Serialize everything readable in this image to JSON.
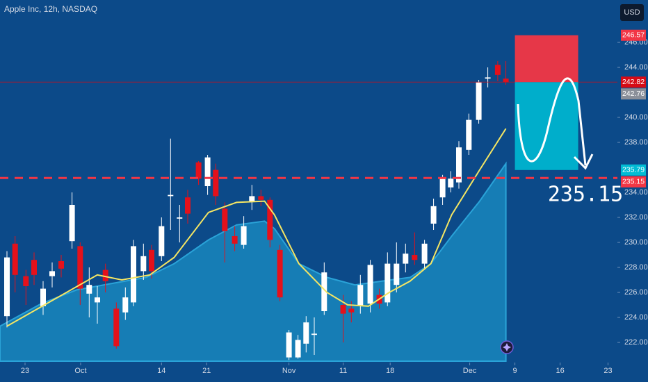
{
  "chart_data": {
    "type": "candlestick",
    "title": "Apple Inc, 12h, NASDAQ",
    "currency": "USD",
    "xlim": [
      -0.77,
      67.54
    ],
    "ylim": [
      220.5,
      249.39
    ],
    "xticks": [
      {
        "value": 2,
        "label": "23"
      },
      {
        "value": 8.15,
        "label": "Oct"
      },
      {
        "value": 17.1,
        "label": "14"
      },
      {
        "value": 22.1,
        "label": "21"
      },
      {
        "value": 31.2,
        "label": "Nov"
      },
      {
        "value": 37.2,
        "label": "11"
      },
      {
        "value": 42.4,
        "label": "18"
      },
      {
        "value": 51.2,
        "label": "Dec"
      },
      {
        "value": 56.2,
        "label": "9"
      },
      {
        "value": 61.2,
        "label": "16"
      },
      {
        "value": 66.5,
        "label": "23"
      }
    ],
    "yticks": [
      {
        "value": 222,
        "label": "222.00"
      },
      {
        "value": 224,
        "label": "224.00"
      },
      {
        "value": 226,
        "label": "226.00"
      },
      {
        "value": 228,
        "label": "228.00"
      },
      {
        "value": 230,
        "label": "230.00"
      },
      {
        "value": 232,
        "label": "232.00"
      },
      {
        "value": 234,
        "label": "234.00"
      },
      {
        "value": 238,
        "label": "238.00"
      },
      {
        "value": 240,
        "label": "240.00"
      },
      {
        "value": 244,
        "label": "244.00"
      },
      {
        "value": 246,
        "label": "246.00"
      }
    ],
    "up_color": "#ffffff",
    "down_color": "#e4111b",
    "candles": {
      "x": [
        0,
        0.9,
        2.1,
        3,
        4,
        5,
        6,
        7.2,
        8.1,
        9.1,
        10,
        10.9,
        12.1,
        13.1,
        14,
        15.1,
        16,
        17.1,
        18.1,
        19.1,
        20,
        21.2,
        22.2,
        23.1,
        24.1,
        25.2,
        26.2,
        27.1,
        28.1,
        29.1,
        30.2,
        31.2,
        32.2,
        33.1,
        34,
        35.1,
        37.2,
        38.1,
        39.1,
        40.2,
        41.2,
        42.1,
        43.1,
        44.1,
        45.1,
        46.2,
        47.2,
        48.2,
        49.1,
        50,
        51.1,
        52.2,
        53.2,
        54.3,
        55.2
      ],
      "open": [
        224.1,
        229.9,
        227.3,
        228.6,
        224.9,
        227.3,
        228.5,
        230.1,
        229.7,
        225.9,
        225.2,
        227.8,
        224.7,
        224.4,
        225.2,
        227.7,
        229.4,
        228.9,
        233.7,
        231.9,
        233.6,
        236.4,
        234.5,
        235.8,
        232.7,
        230.5,
        229.8,
        233.3,
        233.7,
        233.4,
        229.4,
        220.8,
        220.8,
        221.9,
        222.6,
        224.5,
        225.0,
        224.7,
        224.9,
        225.1,
        225.8,
        225.2,
        226.6,
        228.3,
        229.0,
        228.3,
        231.5,
        233.6,
        234.4,
        234.8,
        237.4,
        239.8,
        243.1,
        244.2,
        243.1
      ],
      "high": [
        229.3,
        230.5,
        227.8,
        229.2,
        226.9,
        228.4,
        229.0,
        234.0,
        230.0,
        228.0,
        226.5,
        228.3,
        225.2,
        226.4,
        230.2,
        229.9,
        229.8,
        232.0,
        238.3,
        233.0,
        234.2,
        236.5,
        237.0,
        236.3,
        233.2,
        231.3,
        232.1,
        234.6,
        234.2,
        233.6,
        229.8,
        223.0,
        222.6,
        224.1,
        224.0,
        228.4,
        225.8,
        225.3,
        227.4,
        228.6,
        226.3,
        229.2,
        230.0,
        229.9,
        230.8,
        230.2,
        233.5,
        235.4,
        235.7,
        238.1,
        240.3,
        243.0,
        244.0,
        244.5,
        244.5
      ],
      "low": [
        223.2,
        226.0,
        225.0,
        226.6,
        224.2,
        226.4,
        227.2,
        229.5,
        225.0,
        224.0,
        223.5,
        226.0,
        221.5,
        223.8,
        224.9,
        227.0,
        227.1,
        228.5,
        231.0,
        230.0,
        231.5,
        234.6,
        233.8,
        233.0,
        228.4,
        229.3,
        229.5,
        232.6,
        232.9,
        229.6,
        225.3,
        220.6,
        220.7,
        221.2,
        221.0,
        224.2,
        222.0,
        223.6,
        224.3,
        224.4,
        224.7,
        224.9,
        226.0,
        227.6,
        228.2,
        227.8,
        231.0,
        233.0,
        234.0,
        234.3,
        237.0,
        239.5,
        242.4,
        242.9,
        242.6
      ],
      "close": [
        228.8,
        227.4,
        226.5,
        227.4,
        226.3,
        227.7,
        227.9,
        233.0,
        226.3,
        226.6,
        225.6,
        226.9,
        221.7,
        225.6,
        229.7,
        228.9,
        227.7,
        231.3,
        233.8,
        232.0,
        232.3,
        235.1,
        236.8,
        233.7,
        230.9,
        229.9,
        231.3,
        233.7,
        233.4,
        230.2,
        225.6,
        222.8,
        222.2,
        223.6,
        222.7,
        227.6,
        224.3,
        224.4,
        226.6,
        228.2,
        225.1,
        228.3,
        228.3,
        229.1,
        228.6,
        229.9,
        232.9,
        235.1,
        235.1,
        237.6,
        239.8,
        242.8,
        243.2,
        243.4,
        242.82
      ]
    },
    "series": [
      {
        "type": "area",
        "color": "#1a8fc4",
        "x": [
          -0.77,
          3.8,
          7.7,
          11.5,
          15.4,
          18.5,
          22.3,
          25.4,
          28.5,
          29.6,
          32.3,
          35.4,
          38.5,
          41.5,
          44.6,
          46.9,
          49.2,
          52.3,
          55.2
        ],
        "values": [
          223.3,
          225.1,
          226.2,
          226.7,
          227.2,
          228.3,
          230.2,
          231.4,
          231.7,
          231.1,
          228.3,
          227.2,
          226.6,
          226.9,
          227.2,
          228.3,
          230.5,
          233.3,
          236.3
        ]
      },
      {
        "type": "line",
        "color": "#f5e663",
        "x": [
          0,
          10,
          12.7,
          15.8,
          18.5,
          22.3,
          25.4,
          28.5,
          29.6,
          32.3,
          35.4,
          37.7,
          40,
          42.3,
          44.6,
          46.9,
          49.2,
          52.3,
          55.2
        ],
        "values": [
          223.3,
          227.4,
          227,
          227.4,
          228.8,
          232.4,
          233.2,
          233.3,
          232.2,
          228.3,
          226,
          225,
          224.9,
          226,
          226.9,
          228.3,
          232.2,
          235.8,
          239.1
        ]
      }
    ],
    "position_x": [
      56.2,
      63.2
    ],
    "price_labels": [
      {
        "value": 246.57,
        "color": "#f23645"
      },
      {
        "value": 242.82,
        "color": "#d50b16"
      },
      {
        "value": 242.76,
        "color": "#8a8f99"
      },
      {
        "value": 235.79,
        "color": "#00bcd4"
      },
      {
        "value": 235.15,
        "color": "#f23645"
      }
    ]
  }
}
